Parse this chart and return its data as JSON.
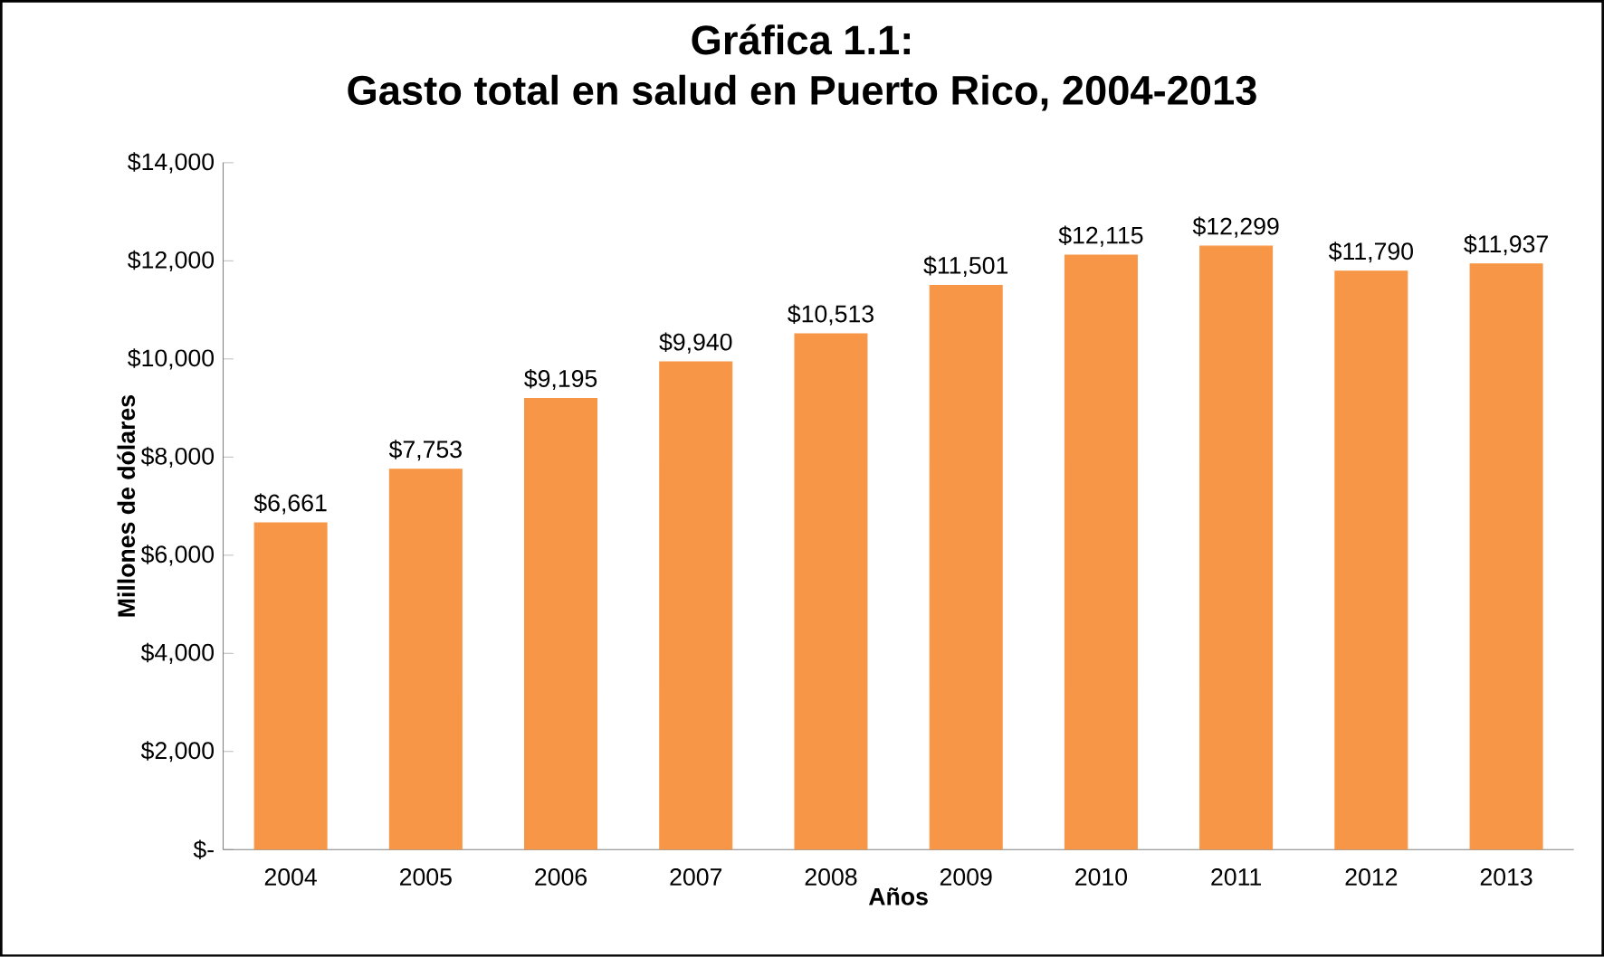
{
  "chart_data": {
    "type": "bar",
    "title": "Gráfica 1.1:",
    "subtitle": "Gasto total en salud en Puerto Rico, 2004-2013",
    "xlabel": "Años",
    "ylabel": "Millones de dólares",
    "categories": [
      "2004",
      "2005",
      "2006",
      "2007",
      "2008",
      "2009",
      "2010",
      "2011",
      "2012",
      "2013"
    ],
    "values": [
      6661,
      7753,
      9195,
      9940,
      10513,
      11501,
      12115,
      12299,
      11790,
      11937
    ],
    "value_labels": [
      "$6,661",
      "$7,753",
      "$9,195",
      "$9,940",
      "$10,513",
      "$11,501",
      "$12,115",
      "$12,299",
      "$11,790",
      "$11,937"
    ],
    "color": "#f79646",
    "ylim": [
      0,
      14000
    ],
    "yticks": [
      {
        "value": 0,
        "label": "$-"
      },
      {
        "value": 2000,
        "label": "$2,000"
      },
      {
        "value": 4000,
        "label": "$4,000"
      },
      {
        "value": 6000,
        "label": "$6,000"
      },
      {
        "value": 8000,
        "label": "$8,000"
      },
      {
        "value": 10000,
        "label": "$10,000"
      },
      {
        "value": 12000,
        "label": "$12,000"
      },
      {
        "value": 14000,
        "label": "$14,000"
      }
    ],
    "grid": false
  }
}
